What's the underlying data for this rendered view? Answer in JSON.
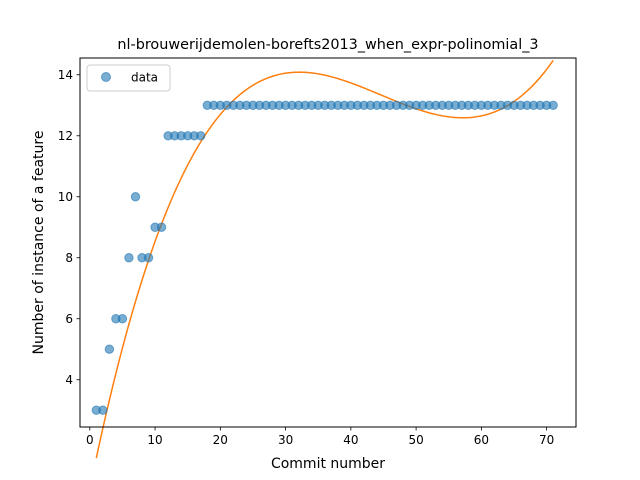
{
  "chart_data": {
    "type": "scatter",
    "title": "nl-brouwerijdemolen-borefts2013_when_expr-polinomial_3",
    "xlabel": "Commit number",
    "ylabel": "Number of instance of a feature",
    "xlim": [
      -1.5,
      74.5
    ],
    "ylim": [
      2.45,
      14.55
    ],
    "xticks": [
      0,
      10,
      20,
      30,
      40,
      50,
      60,
      70
    ],
    "yticks": [
      4,
      6,
      8,
      10,
      12,
      14
    ],
    "grid": false,
    "legend": {
      "position": "top-left",
      "entries": [
        "data"
      ]
    },
    "series": [
      {
        "name": "data",
        "kind": "scatter",
        "color": "#1f77b4",
        "x": [
          1,
          2,
          3,
          4,
          5,
          6,
          7,
          8,
          9,
          10,
          11,
          12,
          13,
          14,
          15,
          16,
          17,
          18,
          19,
          20,
          21,
          22,
          23,
          24,
          25,
          26,
          27,
          28,
          29,
          30,
          31,
          32,
          33,
          34,
          35,
          36,
          37,
          38,
          39,
          40,
          41,
          42,
          43,
          44,
          45,
          46,
          47,
          48,
          49,
          50,
          51,
          52,
          53,
          54,
          55,
          56,
          57,
          58,
          59,
          60,
          61,
          62,
          63,
          64,
          65,
          66,
          67,
          68,
          69,
          70,
          71
        ],
        "y": [
          3,
          3,
          5,
          6,
          6,
          8,
          10,
          8,
          8,
          9,
          9,
          12,
          12,
          12,
          12,
          12,
          12,
          13,
          13,
          13,
          13,
          13,
          13,
          13,
          13,
          13,
          13,
          13,
          13,
          13,
          13,
          13,
          13,
          13,
          13,
          13,
          13,
          13,
          13,
          13,
          13,
          13,
          13,
          13,
          13,
          13,
          13,
          13,
          13,
          13,
          13,
          13,
          13,
          13,
          13,
          13,
          13,
          13,
          13,
          13,
          13,
          13,
          13,
          13,
          13,
          13,
          13,
          13,
          13,
          13,
          13
        ]
      },
      {
        "kind": "line",
        "color": "#ff7f0e",
        "fit": "cubic polynomial",
        "coefficients": [
          0.00019048,
          -0.0255,
          1.0483,
          0.41
        ],
        "x_range": [
          1,
          71
        ]
      }
    ]
  }
}
